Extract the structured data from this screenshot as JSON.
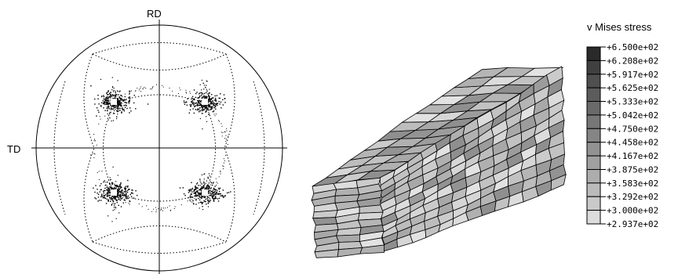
{
  "pole_figure": {
    "rd_label": "RD",
    "td_label": "TD"
  },
  "fem_block": {
    "grid_columns_front": 3,
    "grid_columns_side": 13,
    "grid_rows": 11
  },
  "legend": {
    "title": "v Mises stress",
    "values": [
      "+6.500e+02",
      "+6.208e+02",
      "+5.917e+02",
      "+5.625e+02",
      "+5.333e+02",
      "+5.042e+02",
      "+4.750e+02",
      "+4.458e+02",
      "+4.167e+02",
      "+3.875e+02",
      "+3.583e+02",
      "+3.292e+02",
      "+3.000e+02",
      "+2.937e+02"
    ],
    "colors": [
      "#2a2a2a",
      "#404040",
      "#4f4f4f",
      "#5c5c5c",
      "#6a6a6a",
      "#777777",
      "#858585",
      "#929292",
      "#a0a0a0",
      "#adadad",
      "#bbbbbb",
      "#c9c9c9",
      "#dcdcdc",
      "#ffffff"
    ]
  }
}
